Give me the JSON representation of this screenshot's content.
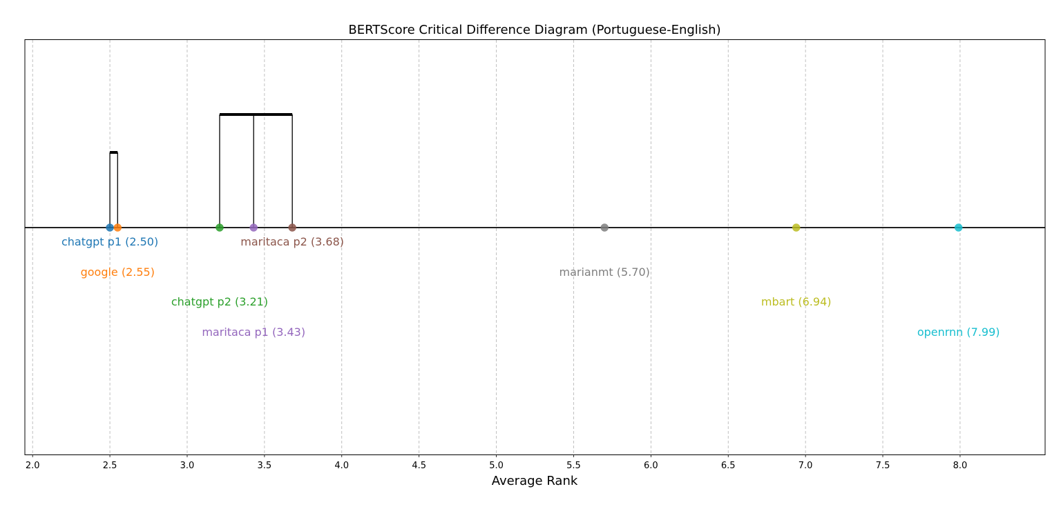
{
  "chart_data": {
    "type": "scatter",
    "title": "BERTScore Critical Difference Diagram (Portuguese-English)",
    "xlabel": "Average Rank",
    "xlim": [
      1.95,
      8.55
    ],
    "x_ticks": [
      "2.0",
      "2.5",
      "3.0",
      "3.5",
      "4.0",
      "4.5",
      "5.0",
      "5.5",
      "6.0",
      "6.5",
      "7.0",
      "7.5",
      "8.0"
    ],
    "grid": "vertical dashed",
    "points": [
      {
        "name": "chatgpt p1",
        "rank": 2.5,
        "label": "chatgpt p1 (2.50)",
        "color": "#1f77b4",
        "label_row": 1
      },
      {
        "name": "google",
        "rank": 2.55,
        "label": "google (2.55)",
        "color": "#ff7f0e",
        "label_row": 2
      },
      {
        "name": "chatgpt p2",
        "rank": 3.21,
        "label": "chatgpt p2 (3.21)",
        "color": "#2ca02c",
        "label_row": 3
      },
      {
        "name": "maritaca p1",
        "rank": 3.43,
        "label": "maritaca p1 (3.43)",
        "color": "#9467bd",
        "label_row": 4
      },
      {
        "name": "maritaca p2",
        "rank": 3.68,
        "label": "maritaca p2 (3.68)",
        "color": "#8c564b",
        "label_row": 1
      },
      {
        "name": "marianmt",
        "rank": 5.7,
        "label": "marianmt (5.70)",
        "color": "#7f7f7f",
        "label_row": 2
      },
      {
        "name": "mbart",
        "rank": 6.94,
        "label": "mbart (6.94)",
        "color": "#bcbd22",
        "label_row": 3
      },
      {
        "name": "openrnn",
        "rank": 7.99,
        "label": "openrnn (7.99)",
        "color": "#17becf",
        "label_row": 4
      }
    ],
    "cliques": [
      {
        "members": [
          "chatgpt p1",
          "google"
        ],
        "start": 2.5,
        "end": 2.55,
        "level": 1
      },
      {
        "members": [
          "chatgpt p2",
          "maritaca p1",
          "maritaca p2"
        ],
        "start": 3.21,
        "end": 3.68,
        "level": 2
      }
    ]
  }
}
